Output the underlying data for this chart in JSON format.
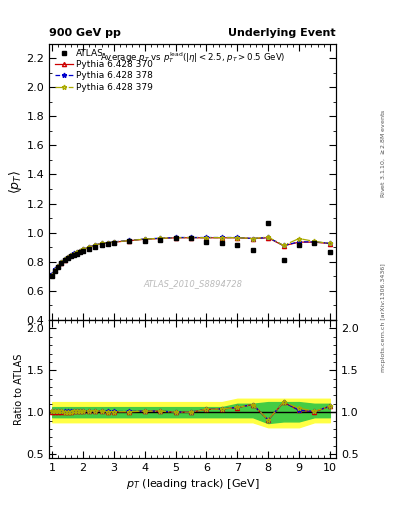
{
  "title_left": "900 GeV pp",
  "title_right": "Underlying Event",
  "watermark": "ATLAS_2010_S8894728",
  "atlas_x": [
    1.0,
    1.1,
    1.2,
    1.3,
    1.4,
    1.5,
    1.6,
    1.7,
    1.8,
    1.9,
    2.0,
    2.2,
    2.4,
    2.6,
    2.8,
    3.0,
    3.5,
    4.0,
    4.5,
    5.0,
    5.5,
    6.0,
    6.5,
    7.0,
    7.5,
    8.0,
    8.5,
    9.0,
    9.5,
    10.0
  ],
  "atlas_y": [
    0.705,
    0.74,
    0.765,
    0.79,
    0.81,
    0.825,
    0.84,
    0.845,
    0.855,
    0.865,
    0.875,
    0.885,
    0.9,
    0.915,
    0.925,
    0.93,
    0.94,
    0.945,
    0.95,
    0.965,
    0.965,
    0.935,
    0.93,
    0.915,
    0.88,
    1.065,
    0.815,
    0.915,
    0.93,
    0.865
  ],
  "py370_x": [
    1.0,
    1.1,
    1.2,
    1.3,
    1.4,
    1.5,
    1.6,
    1.7,
    1.8,
    1.9,
    2.0,
    2.2,
    2.4,
    2.6,
    2.8,
    3.0,
    3.5,
    4.0,
    4.5,
    5.0,
    5.5,
    6.0,
    6.5,
    7.0,
    7.5,
    8.0,
    8.5,
    9.0,
    9.5,
    10.0
  ],
  "py370_y": [
    0.71,
    0.745,
    0.77,
    0.795,
    0.815,
    0.83,
    0.845,
    0.855,
    0.865,
    0.875,
    0.885,
    0.9,
    0.915,
    0.925,
    0.93,
    0.935,
    0.945,
    0.955,
    0.96,
    0.965,
    0.965,
    0.965,
    0.965,
    0.965,
    0.96,
    0.965,
    0.91,
    0.935,
    0.935,
    0.925
  ],
  "py378_x": [
    1.0,
    1.1,
    1.2,
    1.3,
    1.4,
    1.5,
    1.6,
    1.7,
    1.8,
    1.9,
    2.0,
    2.2,
    2.4,
    2.6,
    2.8,
    3.0,
    3.5,
    4.0,
    4.5,
    5.0,
    5.5,
    6.0,
    6.5,
    7.0,
    7.5,
    8.0,
    8.5,
    9.0,
    9.5,
    10.0
  ],
  "py378_y": [
    0.715,
    0.748,
    0.772,
    0.797,
    0.817,
    0.832,
    0.847,
    0.857,
    0.867,
    0.877,
    0.887,
    0.902,
    0.917,
    0.927,
    0.932,
    0.937,
    0.947,
    0.957,
    0.962,
    0.967,
    0.967,
    0.967,
    0.967,
    0.967,
    0.96,
    0.967,
    0.912,
    0.937,
    0.937,
    0.927
  ],
  "py379_x": [
    1.0,
    1.1,
    1.2,
    1.3,
    1.4,
    1.5,
    1.6,
    1.7,
    1.8,
    1.9,
    2.0,
    2.2,
    2.4,
    2.6,
    2.8,
    3.0,
    3.5,
    4.0,
    4.5,
    5.0,
    5.5,
    6.0,
    6.5,
    7.0,
    7.5,
    8.0,
    8.5,
    9.0,
    9.5,
    10.0
  ],
  "py379_y": [
    0.712,
    0.746,
    0.771,
    0.796,
    0.816,
    0.831,
    0.846,
    0.856,
    0.866,
    0.876,
    0.886,
    0.901,
    0.916,
    0.926,
    0.931,
    0.936,
    0.946,
    0.956,
    0.961,
    0.966,
    0.966,
    0.966,
    0.966,
    0.966,
    0.96,
    0.97,
    0.912,
    0.96,
    0.94,
    0.926
  ],
  "ratio370_y": [
    1.007,
    1.007,
    1.007,
    1.006,
    1.006,
    1.006,
    1.006,
    1.012,
    1.012,
    1.012,
    1.011,
    1.017,
    1.017,
    1.011,
    1.005,
    1.005,
    1.005,
    1.011,
    1.011,
    1.0,
    1.0,
    1.032,
    1.038,
    1.054,
    1.091,
    0.906,
    1.117,
    1.022,
    1.005,
    1.069
  ],
  "ratio378_y": [
    1.014,
    1.011,
    1.009,
    1.009,
    1.009,
    1.009,
    1.008,
    1.014,
    1.014,
    1.014,
    1.014,
    1.019,
    1.019,
    1.013,
    1.008,
    1.008,
    1.008,
    1.013,
    1.013,
    1.002,
    1.002,
    1.034,
    1.04,
    1.057,
    1.091,
    0.908,
    1.119,
    1.024,
    1.008,
    1.071
  ],
  "ratio379_y": [
    1.01,
    1.008,
    1.008,
    1.008,
    1.007,
    1.007,
    1.007,
    1.013,
    1.013,
    1.013,
    1.013,
    1.018,
    1.018,
    1.012,
    1.006,
    1.006,
    1.006,
    1.012,
    1.012,
    1.001,
    1.001,
    1.033,
    1.039,
    1.056,
    1.091,
    0.911,
    1.119,
    1.049,
    1.011,
    1.07
  ],
  "band_x": [
    1.0,
    1.1,
    1.2,
    1.3,
    1.4,
    1.5,
    1.6,
    1.7,
    1.8,
    1.9,
    2.0,
    2.2,
    2.4,
    2.6,
    2.8,
    3.0,
    3.5,
    4.0,
    4.5,
    5.0,
    5.5,
    6.0,
    6.5,
    7.0,
    7.5,
    8.0,
    8.5,
    9.0,
    9.5,
    10.0
  ],
  "band_yellow_lo": [
    0.88,
    0.88,
    0.88,
    0.88,
    0.88,
    0.88,
    0.88,
    0.88,
    0.88,
    0.88,
    0.88,
    0.88,
    0.88,
    0.88,
    0.88,
    0.88,
    0.88,
    0.88,
    0.88,
    0.88,
    0.88,
    0.88,
    0.88,
    0.88,
    0.88,
    0.82,
    0.82,
    0.82,
    0.88,
    0.88
  ],
  "band_yellow_hi": [
    1.12,
    1.12,
    1.12,
    1.12,
    1.12,
    1.12,
    1.12,
    1.12,
    1.12,
    1.12,
    1.12,
    1.12,
    1.12,
    1.12,
    1.12,
    1.12,
    1.12,
    1.12,
    1.12,
    1.12,
    1.12,
    1.12,
    1.12,
    1.16,
    1.16,
    1.16,
    1.16,
    1.16,
    1.16,
    1.16
  ],
  "band_green_lo": [
    0.94,
    0.94,
    0.94,
    0.94,
    0.94,
    0.94,
    0.94,
    0.94,
    0.94,
    0.94,
    0.94,
    0.94,
    0.94,
    0.94,
    0.94,
    0.94,
    0.94,
    0.94,
    0.94,
    0.94,
    0.94,
    0.94,
    0.94,
    0.94,
    0.94,
    0.87,
    0.89,
    0.89,
    0.94,
    0.94
  ],
  "band_green_hi": [
    1.06,
    1.06,
    1.06,
    1.06,
    1.06,
    1.06,
    1.06,
    1.06,
    1.06,
    1.06,
    1.06,
    1.06,
    1.06,
    1.06,
    1.06,
    1.06,
    1.06,
    1.06,
    1.06,
    1.06,
    1.06,
    1.06,
    1.06,
    1.1,
    1.1,
    1.12,
    1.12,
    1.12,
    1.1,
    1.1
  ],
  "color_atlas": "#000000",
  "color_py370": "#cc0000",
  "color_py378": "#0000cc",
  "color_py379": "#aaaa00",
  "color_yellow": "#ffff44",
  "color_green": "#44cc44",
  "ylim_main": [
    0.4,
    2.3
  ],
  "ylim_ratio": [
    0.45,
    2.1
  ],
  "xlim": [
    0.9,
    10.2
  ],
  "xticks": [
    1,
    2,
    3,
    4,
    5,
    6,
    7,
    8,
    9,
    10
  ],
  "yticks_main": [
    0.4,
    0.6,
    0.8,
    1.0,
    1.2,
    1.4,
    1.6,
    1.8,
    2.0,
    2.2
  ],
  "yticks_ratio": [
    0.5,
    1.0,
    1.5,
    2.0
  ]
}
